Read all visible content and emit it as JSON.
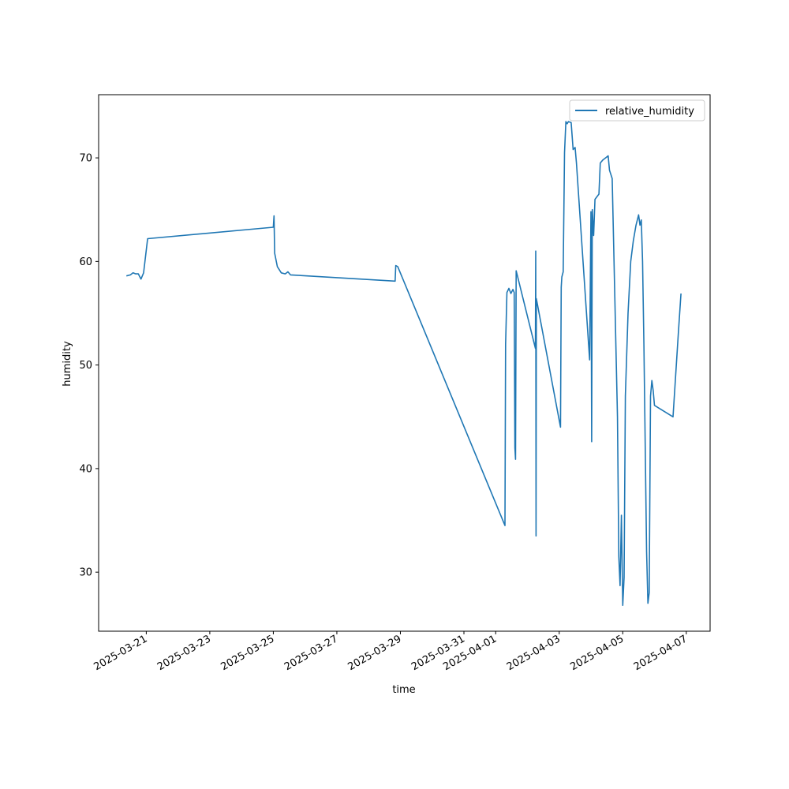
{
  "chart_data": {
    "type": "line",
    "xlabel": "time",
    "ylabel": "humidity",
    "xlim": [
      "2025-03-19T12:00",
      "2025-04-07T18:00"
    ],
    "ylim": [
      24.3,
      76.1
    ],
    "x_ticks": [
      "2025-03-21",
      "2025-03-23",
      "2025-03-25",
      "2025-03-27",
      "2025-03-29",
      "2025-03-31",
      "2025-04-01",
      "2025-04-03",
      "2025-04-05",
      "2025-04-07"
    ],
    "y_ticks": [
      30,
      40,
      50,
      60,
      70
    ],
    "grid": false,
    "legend_position": "top-right",
    "series": [
      {
        "name": "relative_humidity",
        "color": "#1f77b4",
        "points": [
          [
            "2025-03-20T09:00",
            58.6
          ],
          [
            "2025-03-20T12:00",
            58.7
          ],
          [
            "2025-03-20T14:00",
            58.9
          ],
          [
            "2025-03-20T16:00",
            58.8
          ],
          [
            "2025-03-20T18:00",
            58.8
          ],
          [
            "2025-03-20T20:00",
            58.3
          ],
          [
            "2025-03-20T22:00",
            58.9
          ],
          [
            "2025-03-21T01:00",
            62.2
          ],
          [
            "2025-03-25T00:00",
            63.3
          ],
          [
            "2025-03-25T00:30",
            64.4
          ],
          [
            "2025-03-25T01:00",
            60.8
          ],
          [
            "2025-03-25T03:00",
            59.5
          ],
          [
            "2025-03-25T06:00",
            58.9
          ],
          [
            "2025-03-25T09:00",
            58.8
          ],
          [
            "2025-03-25T11:00",
            59.0
          ],
          [
            "2025-03-25T13:00",
            58.7
          ],
          [
            "2025-03-28T20:00",
            58.1
          ],
          [
            "2025-03-28T20:30",
            59.6
          ],
          [
            "2025-03-28T22:00",
            59.5
          ],
          [
            "2025-04-01T07:00",
            34.5
          ],
          [
            "2025-04-01T07:30",
            52.0
          ],
          [
            "2025-04-01T08:30",
            57.0
          ],
          [
            "2025-04-01T10:00",
            57.4
          ],
          [
            "2025-04-01T11:30",
            56.9
          ],
          [
            "2025-04-01T13:00",
            57.3
          ],
          [
            "2025-04-01T14:00",
            57.0
          ],
          [
            "2025-04-01T14:30",
            42.0
          ],
          [
            "2025-04-01T15:00",
            40.9
          ],
          [
            "2025-04-01T15:30",
            59.1
          ],
          [
            "2025-04-02T06:00",
            51.6
          ],
          [
            "2025-04-02T06:15",
            61.0
          ],
          [
            "2025-04-02T06:30",
            33.5
          ],
          [
            "2025-04-02T06:45",
            56.4
          ],
          [
            "2025-04-03T01:00",
            44.0
          ],
          [
            "2025-04-03T01:30",
            57.5
          ],
          [
            "2025-04-03T02:00",
            58.5
          ],
          [
            "2025-04-03T03:00",
            59.0
          ],
          [
            "2025-04-03T04:00",
            70.5
          ],
          [
            "2025-04-03T05:00",
            73.5
          ],
          [
            "2025-04-03T06:00",
            73.3
          ],
          [
            "2025-04-03T07:00",
            73.5
          ],
          [
            "2025-04-03T09:00",
            73.4
          ],
          [
            "2025-04-03T10:30",
            70.8
          ],
          [
            "2025-04-03T12:00",
            71.0
          ],
          [
            "2025-04-03T13:00",
            69.5
          ],
          [
            "2025-04-03T23:00",
            50.5
          ],
          [
            "2025-04-04T00:00",
            64.8
          ],
          [
            "2025-04-04T00:30",
            42.6
          ],
          [
            "2025-04-04T01:00",
            65.0
          ],
          [
            "2025-04-04T02:00",
            62.5
          ],
          [
            "2025-04-04T03:00",
            66.0
          ],
          [
            "2025-04-04T06:00",
            66.5
          ],
          [
            "2025-04-04T07:00",
            69.5
          ],
          [
            "2025-04-04T09:00",
            69.8
          ],
          [
            "2025-04-04T11:00",
            70.0
          ],
          [
            "2025-04-04T13:00",
            70.2
          ],
          [
            "2025-04-04T14:00",
            68.8
          ],
          [
            "2025-04-04T16:00",
            68.0
          ],
          [
            "2025-04-04T20:00",
            45.0
          ],
          [
            "2025-04-04T21:00",
            31.5
          ],
          [
            "2025-04-04T22:00",
            28.7
          ],
          [
            "2025-04-04T23:00",
            35.5
          ],
          [
            "2025-04-05T00:00",
            26.8
          ],
          [
            "2025-04-05T01:00",
            29.5
          ],
          [
            "2025-04-05T02:00",
            47.0
          ],
          [
            "2025-04-05T04:00",
            55.0
          ],
          [
            "2025-04-05T06:00",
            60.0
          ],
          [
            "2025-04-05T08:00",
            62.0
          ],
          [
            "2025-04-05T10:00",
            63.5
          ],
          [
            "2025-04-05T12:00",
            64.5
          ],
          [
            "2025-04-05T13:00",
            63.5
          ],
          [
            "2025-04-05T14:00",
            64.0
          ],
          [
            "2025-04-05T15:00",
            60.0
          ],
          [
            "2025-04-05T16:00",
            52.0
          ],
          [
            "2025-04-05T18:00",
            32.0
          ],
          [
            "2025-04-05T19:00",
            27.0
          ],
          [
            "2025-04-05T20:00",
            28.0
          ],
          [
            "2025-04-05T21:00",
            47.0
          ],
          [
            "2025-04-05T22:00",
            48.5
          ],
          [
            "2025-04-05T23:00",
            47.5
          ],
          [
            "2025-04-06T00:00",
            46.1
          ],
          [
            "2025-04-06T14:00",
            45.0
          ],
          [
            "2025-04-06T18:00",
            53.0
          ],
          [
            "2025-04-06T20:00",
            56.9
          ]
        ]
      }
    ]
  }
}
